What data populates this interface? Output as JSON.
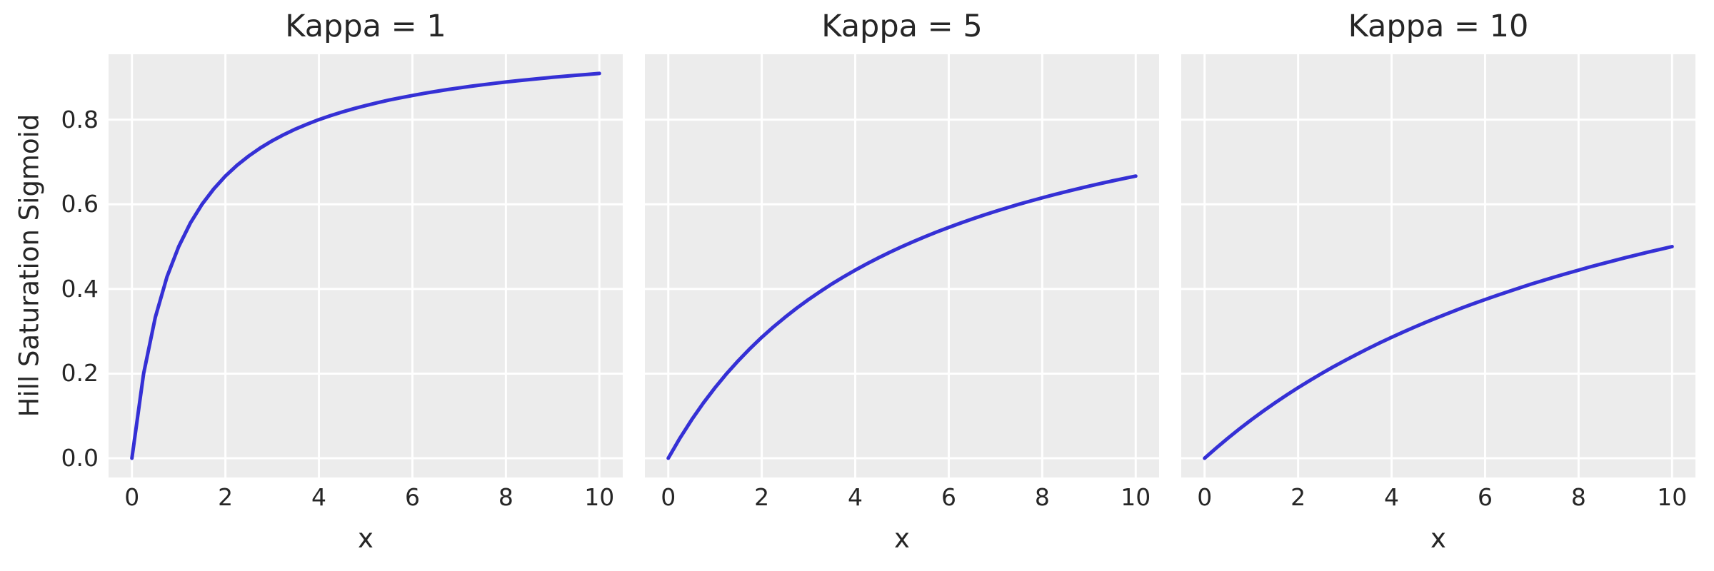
{
  "figure": {
    "background": "#ffffff",
    "axes_background": "#ececec",
    "grid_color": "#ffffff",
    "text_color": "#262626",
    "line_color": "#3530d5"
  },
  "chart_data": {
    "type": "line",
    "layout": "1x3 subplots, shared y axis, grid on, no legend",
    "xlabel": "x",
    "ylabel": "Hill Saturation Sigmoid",
    "xlim": [
      -0.5,
      10.5
    ],
    "ylim": [
      -0.045455,
      0.954545
    ],
    "x_ticks": [
      "0",
      "2",
      "4",
      "6",
      "8",
      "10"
    ],
    "x_tick_values": [
      0,
      2,
      4,
      6,
      8,
      10
    ],
    "y_ticks": [
      "0.0",
      "0.2",
      "0.4",
      "0.6",
      "0.8"
    ],
    "y_tick_values": [
      0.0,
      0.2,
      0.4,
      0.6,
      0.8
    ],
    "x": [
      0,
      0.25,
      0.5,
      0.75,
      1,
      1.25,
      1.5,
      1.75,
      2,
      2.25,
      2.5,
      2.75,
      3,
      3.25,
      3.5,
      3.75,
      4,
      4.25,
      4.5,
      4.75,
      5,
      5.25,
      5.5,
      5.75,
      6,
      6.25,
      6.5,
      6.75,
      7,
      7.25,
      7.5,
      7.75,
      8,
      8.25,
      8.5,
      8.75,
      9,
      9.25,
      9.5,
      9.75,
      10
    ],
    "subplots": [
      {
        "title": "Kappa = 1",
        "kappa": 1,
        "formula": "y = x / (x + 1)",
        "y": [
          0,
          0.2,
          0.3333,
          0.4286,
          0.5,
          0.5556,
          0.6,
          0.6364,
          0.6667,
          0.6923,
          0.7143,
          0.7333,
          0.75,
          0.7647,
          0.7778,
          0.7895,
          0.8,
          0.8095,
          0.8182,
          0.8261,
          0.8333,
          0.84,
          0.8462,
          0.8519,
          0.8571,
          0.8621,
          0.8667,
          0.871,
          0.875,
          0.8788,
          0.8824,
          0.8857,
          0.8889,
          0.8919,
          0.8947,
          0.8974,
          0.9,
          0.9024,
          0.9048,
          0.907,
          0.9091
        ]
      },
      {
        "title": "Kappa = 5",
        "kappa": 5,
        "formula": "y = x / (x + 5)",
        "y": [
          0,
          0.0476,
          0.0909,
          0.1304,
          0.1667,
          0.2,
          0.2308,
          0.2593,
          0.2857,
          0.3103,
          0.3333,
          0.3548,
          0.375,
          0.3939,
          0.4118,
          0.4286,
          0.4444,
          0.4595,
          0.4737,
          0.4872,
          0.5,
          0.5122,
          0.5238,
          0.5349,
          0.5455,
          0.5556,
          0.5652,
          0.5745,
          0.5833,
          0.5918,
          0.6,
          0.6078,
          0.6154,
          0.6226,
          0.6296,
          0.6364,
          0.6429,
          0.6491,
          0.6552,
          0.661,
          0.6667
        ]
      },
      {
        "title": "Kappa = 10",
        "kappa": 10,
        "formula": "y = x / (x + 10)",
        "y": [
          0,
          0.0244,
          0.0476,
          0.0698,
          0.0909,
          0.1111,
          0.1304,
          0.1489,
          0.1667,
          0.1837,
          0.2,
          0.2157,
          0.2308,
          0.2453,
          0.2593,
          0.2727,
          0.2857,
          0.2982,
          0.3103,
          0.322,
          0.3333,
          0.3443,
          0.3548,
          0.3651,
          0.375,
          0.3846,
          0.3939,
          0.403,
          0.4118,
          0.4203,
          0.4286,
          0.4366,
          0.4444,
          0.4521,
          0.4595,
          0.4667,
          0.4737,
          0.4805,
          0.4872,
          0.4937,
          0.5
        ]
      }
    ]
  }
}
